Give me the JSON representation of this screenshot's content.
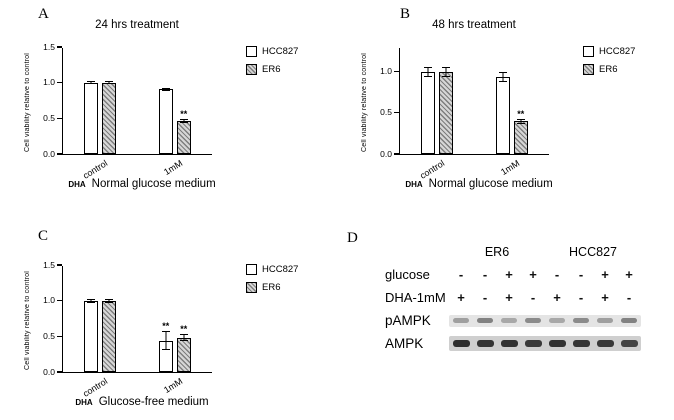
{
  "panels": [
    {
      "id": "A",
      "label": "A"
    },
    {
      "id": "B",
      "label": "B"
    },
    {
      "id": "C",
      "label": "C"
    },
    {
      "id": "D",
      "label": "D"
    }
  ],
  "chart_data": [
    {
      "panel": "A",
      "type": "bar",
      "title": "24 hrs treatment",
      "categories": [
        "control",
        "1mM"
      ],
      "series": [
        {
          "name": "HCC827",
          "style": "open",
          "values": [
            1.0,
            0.91
          ],
          "errors": [
            0.02,
            0.02
          ],
          "sig": [
            "",
            ""
          ]
        },
        {
          "name": "ER6",
          "style": "hatched",
          "values": [
            1.0,
            0.46
          ],
          "errors": [
            0.02,
            0.03
          ],
          "sig": [
            "",
            "**"
          ]
        }
      ],
      "ylabel": "Cell viability relative to control",
      "xlabel_dha": "DHA",
      "xlabel": "Normal glucose medium",
      "ylim": [
        0,
        1.5
      ],
      "yticks": [
        0,
        0.5,
        1.0,
        1.5
      ],
      "grid": false,
      "legend_position": "right"
    },
    {
      "panel": "B",
      "type": "bar",
      "title": "48 hrs treatment",
      "categories": [
        "control",
        "1mM"
      ],
      "series": [
        {
          "name": "HCC827",
          "style": "open",
          "values": [
            1.0,
            0.94
          ],
          "errors": [
            0.06,
            0.06
          ],
          "sig": [
            "",
            ""
          ]
        },
        {
          "name": "ER6",
          "style": "hatched",
          "values": [
            1.0,
            0.4
          ],
          "errors": [
            0.06,
            0.03
          ],
          "sig": [
            "",
            "**"
          ]
        }
      ],
      "ylabel": "Cell viability relative to control",
      "xlabel_dha": "DHA",
      "xlabel": "Normal glucose medium",
      "ylim": [
        0,
        1.3
      ],
      "yticks": [
        0,
        0.5,
        1.0
      ],
      "grid": false,
      "legend_position": "right"
    },
    {
      "panel": "C",
      "type": "bar",
      "title": "",
      "categories": [
        "control",
        "1mM"
      ],
      "series": [
        {
          "name": "HCC827",
          "style": "open",
          "values": [
            1.0,
            0.44
          ],
          "errors": [
            0.03,
            0.13
          ],
          "sig": [
            "",
            "**"
          ]
        },
        {
          "name": "ER6",
          "style": "hatched",
          "values": [
            1.0,
            0.48
          ],
          "errors": [
            0.03,
            0.05
          ],
          "sig": [
            "",
            "**"
          ]
        }
      ],
      "ylabel": "Cell viability relative to control",
      "xlabel_dha": "DHA",
      "xlabel": "Glucose-free medium",
      "ylim": [
        0,
        1.5
      ],
      "yticks": [
        0,
        0.5,
        1.0,
        1.5
      ],
      "grid": false,
      "legend_position": "right"
    }
  ],
  "blot": {
    "panel": "D",
    "groups": [
      "ER6",
      "HCC827"
    ],
    "condition_rows": [
      {
        "label": "glucose",
        "signs": [
          "-",
          "-",
          "+",
          "+",
          "-",
          "-",
          "+",
          "+"
        ]
      },
      {
        "label": "DHA-1mM",
        "signs": [
          "+",
          "-",
          "+",
          "-",
          "+",
          "-",
          "+",
          "-"
        ]
      }
    ],
    "bands": [
      {
        "label": "pAMPK",
        "intensities": [
          0.35,
          0.5,
          0.3,
          0.45,
          0.3,
          0.45,
          0.35,
          0.5
        ]
      },
      {
        "label": "AMPK",
        "intensities": [
          0.92,
          0.88,
          0.9,
          0.85,
          0.9,
          0.88,
          0.86,
          0.8
        ]
      }
    ]
  }
}
